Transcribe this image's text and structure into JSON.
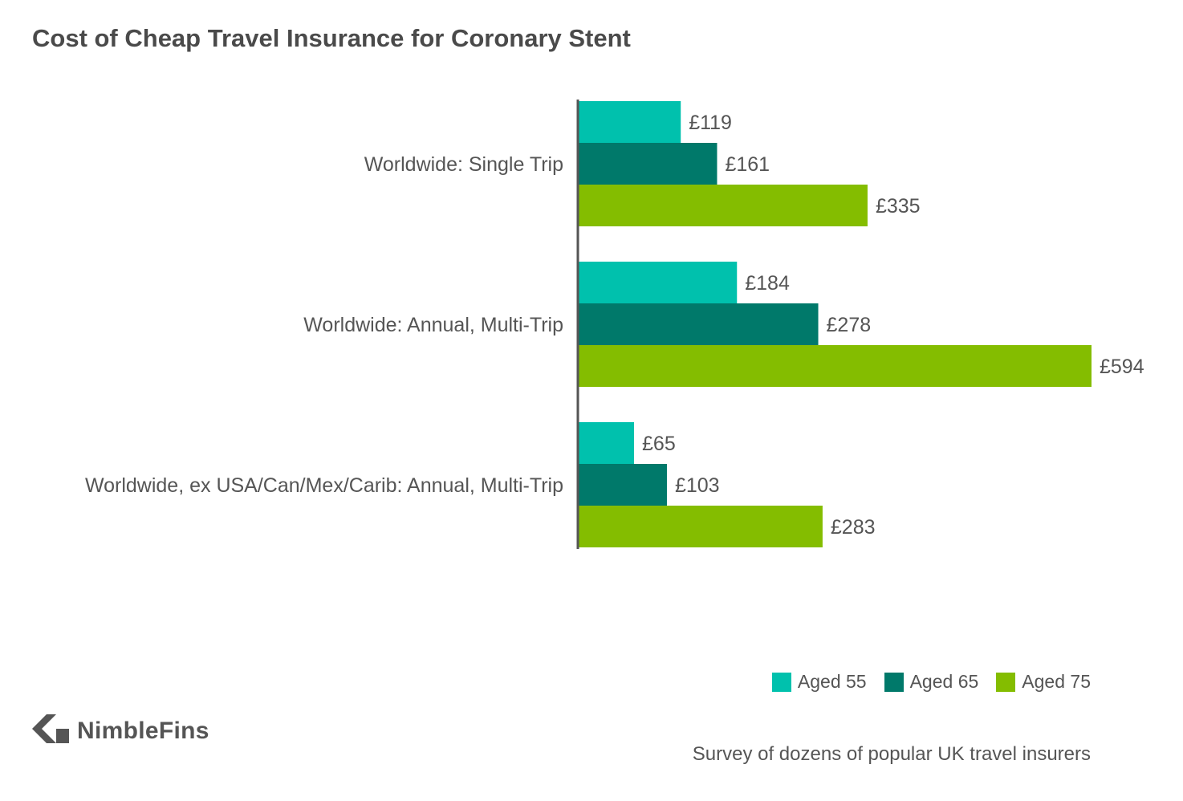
{
  "chart_data": {
    "type": "bar",
    "orientation": "horizontal",
    "title": "Cost of Cheap Travel Insurance for Coronary Stent",
    "categories": [
      "Worldwide: Single Trip",
      "Worldwide: Annual, Multi-Trip",
      "Worldwide, ex USA/Can/Mex/Carib: Annual, Multi-Trip"
    ],
    "series": [
      {
        "name": "Aged 55",
        "color": "#00c1ad",
        "values": [
          119,
          184,
          65
        ],
        "labels": [
          "£119",
          "£184",
          "£65"
        ]
      },
      {
        "name": "Aged 65",
        "color": "#00796a",
        "values": [
          161,
          278,
          103
        ],
        "labels": [
          "£161",
          "£278",
          "£103"
        ]
      },
      {
        "name": "Aged 75",
        "color": "#84bd00",
        "values": [
          335,
          594,
          283
        ],
        "labels": [
          "£335",
          "£594",
          "£283"
        ]
      }
    ],
    "xlim": [
      0,
      594
    ],
    "grid": false,
    "legend_position": "bottom-right"
  },
  "branding": {
    "logo_text": "NimbleFins",
    "logo_icon": "chevron-left-icon"
  },
  "footer": {
    "source_note": "Survey of dozens of popular UK travel insurers"
  }
}
